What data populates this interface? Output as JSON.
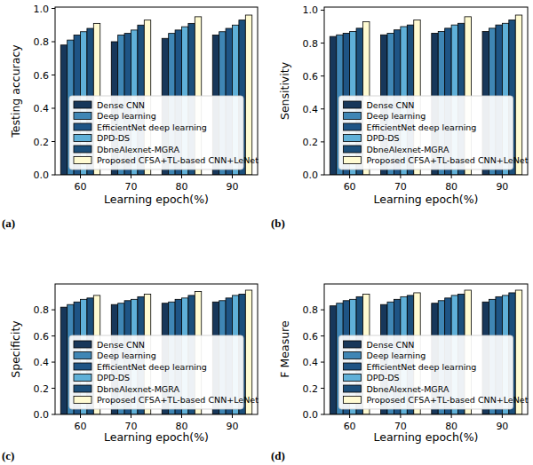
{
  "chart_data": [
    {
      "type": "bar",
      "title": "(a)",
      "x_label": "Learning epoch(%)",
      "y_label": "Testing accuracy",
      "categories": [
        "60",
        "70",
        "80",
        "90"
      ],
      "series": [
        {
          "name": "Dense CNN",
          "color": "#17375a",
          "values": [
            0.78,
            0.8,
            0.82,
            0.84
          ]
        },
        {
          "name": "Deep learning",
          "color": "#3f86b5",
          "values": [
            0.81,
            0.84,
            0.85,
            0.86
          ]
        },
        {
          "name": "EfficientNet deep learning",
          "color": "#1e5485",
          "values": [
            0.84,
            0.85,
            0.87,
            0.88
          ]
        },
        {
          "name": "DPD-DS",
          "color": "#5fb0d8",
          "values": [
            0.86,
            0.87,
            0.89,
            0.9
          ]
        },
        {
          "name": "DbneAlexnet-MGRA",
          "color": "#1b4f7b",
          "values": [
            0.88,
            0.9,
            0.91,
            0.93
          ]
        },
        {
          "name": "Proposed CFSA+TL-based CNN+LeNet",
          "color": "#fffbd2",
          "values": [
            0.91,
            0.93,
            0.95,
            0.96
          ]
        }
      ],
      "ylim": [
        0,
        1.008
      ],
      "yticks": [
        {
          "value": 0,
          "label": "0.0"
        },
        0.2,
        0.4,
        0.6,
        0.8,
        {
          "value": 1,
          "label": "1.0"
        }
      ],
      "legend": "lower center"
    },
    {
      "type": "bar",
      "title": "(b)",
      "x_label": "Learning epoch(%)",
      "y_label": "Sensitivity",
      "categories": [
        "60",
        "70",
        "80",
        "90"
      ],
      "series": [
        {
          "name": "Dense CNN",
          "color": "#17375a",
          "values": [
            0.84,
            0.85,
            0.86,
            0.87
          ]
        },
        {
          "name": "Deep learning",
          "color": "#3f86b5",
          "values": [
            0.85,
            0.86,
            0.87,
            0.89
          ]
        },
        {
          "name": "EfficientNet deep learning",
          "color": "#1e5485",
          "values": [
            0.86,
            0.88,
            0.89,
            0.91
          ]
        },
        {
          "name": "DPD-DS",
          "color": "#5fb0d8",
          "values": [
            0.87,
            0.9,
            0.91,
            0.92
          ]
        },
        {
          "name": "DbneAlexnet-MGRA",
          "color": "#1b4f7b",
          "values": [
            0.89,
            0.91,
            0.92,
            0.94
          ]
        },
        {
          "name": "Proposed CFSA+TL-based CNN+LeNet",
          "color": "#fffbd2",
          "values": [
            0.93,
            0.94,
            0.96,
            0.97
          ]
        }
      ],
      "ylim": [
        0,
        1.0185
      ],
      "yticks": [
        {
          "value": 0,
          "label": "0.0"
        },
        0.2,
        0.4,
        0.6,
        0.8,
        {
          "value": 1,
          "label": "1.0"
        }
      ],
      "legend": "lower center"
    },
    {
      "type": "bar",
      "title": "(c)",
      "x_label": "Learning epoch(%)",
      "y_label": "Specificity",
      "categories": [
        "60",
        "70",
        "80",
        "90"
      ],
      "series": [
        {
          "name": "Dense CNN",
          "color": "#17375a",
          "values": [
            0.82,
            0.84,
            0.85,
            0.86
          ]
        },
        {
          "name": "Deep learning",
          "color": "#3f86b5",
          "values": [
            0.84,
            0.85,
            0.86,
            0.87
          ]
        },
        {
          "name": "EfficientNet deep learning",
          "color": "#1e5485",
          "values": [
            0.86,
            0.87,
            0.88,
            0.89
          ]
        },
        {
          "name": "DPD-DS",
          "color": "#5fb0d8",
          "values": [
            0.88,
            0.88,
            0.89,
            0.91
          ]
        },
        {
          "name": "DbneAlexnet-MGRA",
          "color": "#1b4f7b",
          "values": [
            0.89,
            0.9,
            0.91,
            0.92
          ]
        },
        {
          "name": "Proposed CFSA+TL-based CNN+LeNet",
          "color": "#fffbd2",
          "values": [
            0.91,
            0.92,
            0.94,
            0.95
          ]
        }
      ],
      "ylim": [
        0,
        0.9975
      ],
      "yticks": [
        {
          "value": 0,
          "label": "0.0"
        },
        0.2,
        0.4,
        0.6,
        0.8
      ],
      "legend": "lower center"
    },
    {
      "type": "bar",
      "title": "(d)",
      "x_label": "Learning epoch(%)",
      "y_label": "F Measure",
      "categories": [
        "60",
        "70",
        "80",
        "90"
      ],
      "series": [
        {
          "name": "Dense CNN",
          "color": "#17375a",
          "values": [
            0.83,
            0.84,
            0.85,
            0.86
          ]
        },
        {
          "name": "Deep learning",
          "color": "#3f86b5",
          "values": [
            0.85,
            0.86,
            0.87,
            0.88
          ]
        },
        {
          "name": "EfficientNet deep learning",
          "color": "#1e5485",
          "values": [
            0.87,
            0.88,
            0.89,
            0.9
          ]
        },
        {
          "name": "DPD-DS",
          "color": "#5fb0d8",
          "values": [
            0.88,
            0.9,
            0.91,
            0.91
          ]
        },
        {
          "name": "DbneAlexnet-MGRA",
          "color": "#1b4f7b",
          "values": [
            0.9,
            0.91,
            0.92,
            0.93
          ]
        },
        {
          "name": "Proposed CFSA+TL-based CNN+LeNet",
          "color": "#fffbd2",
          "values": [
            0.92,
            0.93,
            0.95,
            0.95
          ]
        }
      ],
      "ylim": [
        0,
        0.9975
      ],
      "yticks": [
        {
          "value": 0,
          "label": "0.0"
        },
        0.2,
        0.4,
        0.6,
        0.8
      ],
      "legend": "lower center"
    }
  ]
}
